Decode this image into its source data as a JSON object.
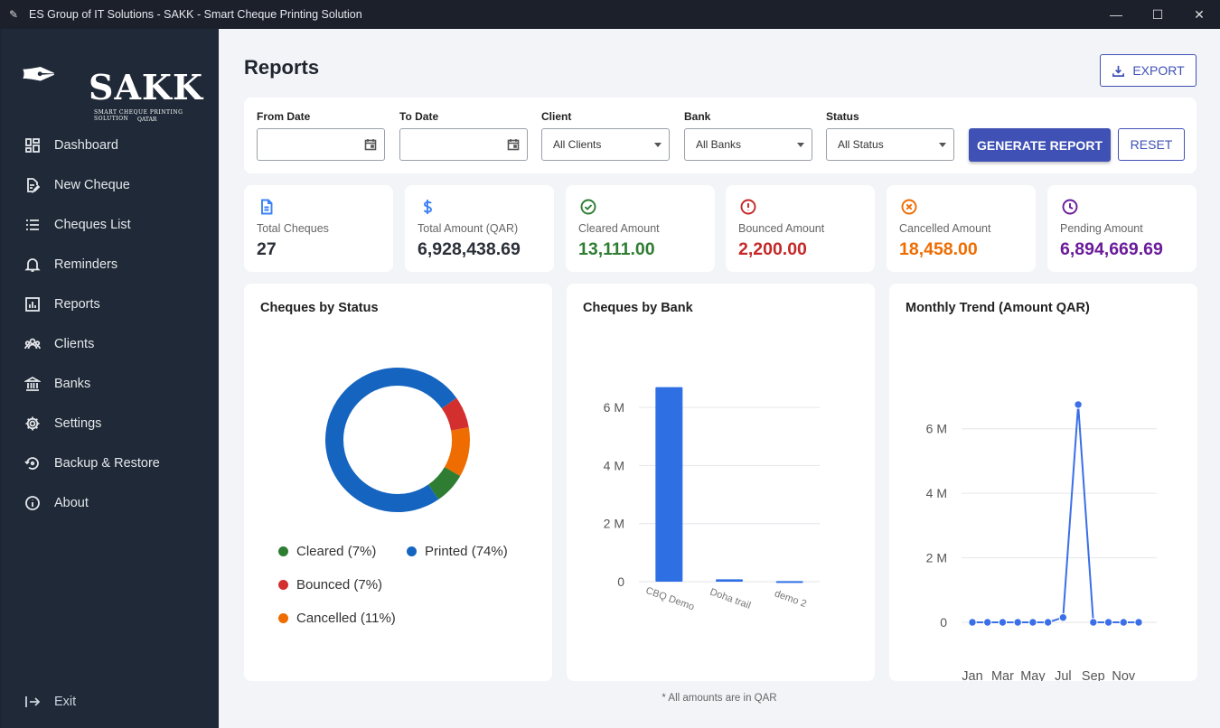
{
  "window": {
    "title": "ES Group of IT Solutions - SAKK - Smart Cheque Printing Solution",
    "minimize_icon": "minimize-icon",
    "maximize_icon": "maximize-icon",
    "close_icon": "close-icon"
  },
  "sidebar": {
    "logo": {
      "brand": "SAKK",
      "tagline": "SMART CHEQUE PRINTING SOLUTION",
      "location": "QATAR"
    },
    "items": [
      {
        "label": "Dashboard",
        "icon": "dashboard-icon"
      },
      {
        "label": "New Cheque",
        "icon": "edit-document-icon"
      },
      {
        "label": "Cheques List",
        "icon": "list-icon"
      },
      {
        "label": "Reminders",
        "icon": "bell-icon"
      },
      {
        "label": "Reports",
        "icon": "chart-icon"
      },
      {
        "label": "Clients",
        "icon": "people-icon"
      },
      {
        "label": "Banks",
        "icon": "bank-icon"
      },
      {
        "label": "Settings",
        "icon": "gear-icon"
      },
      {
        "label": "Backup & Restore",
        "icon": "restore-icon"
      },
      {
        "label": "About",
        "icon": "info-icon"
      }
    ],
    "exit_label": "Exit"
  },
  "main": {
    "title": "Reports",
    "export_label": "EXPORT",
    "filters": {
      "from_date": {
        "label": "From Date",
        "value": ""
      },
      "to_date": {
        "label": "To Date",
        "value": ""
      },
      "client": {
        "label": "Client",
        "value": "All Clients"
      },
      "bank": {
        "label": "Bank",
        "value": "All Banks"
      },
      "status": {
        "label": "Status",
        "value": "All Status"
      },
      "generate_label": "GENERATE REPORT",
      "reset_label": "RESET"
    },
    "stats": [
      {
        "label": "Total Cheques",
        "value": "27",
        "color": "#2a2f38",
        "icon_color": "#3b82f6",
        "icon": "document-icon"
      },
      {
        "label": "Total Amount (QAR)",
        "value": "6,928,438.69",
        "color": "#2a2f38",
        "icon_color": "#3b82f6",
        "icon": "dollar-icon"
      },
      {
        "label": "Cleared Amount",
        "value": "13,111.00",
        "color": "#2e7d32",
        "icon_color": "#2e7d32",
        "icon": "check-circle-icon"
      },
      {
        "label": "Bounced Amount",
        "value": "2,200.00",
        "color": "#c62828",
        "icon_color": "#c62828",
        "icon": "alert-circle-icon"
      },
      {
        "label": "Cancelled Amount",
        "value": "18,458.00",
        "color": "#ef6c00",
        "icon_color": "#ef6c00",
        "icon": "cancel-circle-icon"
      },
      {
        "label": "Pending Amount",
        "value": "6,894,669.69",
        "color": "#6a1b9a",
        "icon_color": "#6a1b9a",
        "icon": "clock-icon"
      }
    ],
    "footnote": "* All amounts are in QAR"
  },
  "chart_data": [
    {
      "type": "pie",
      "title": "Cheques by Status",
      "donut": true,
      "slices": [
        {
          "name": "Cleared (7%)",
          "value": 7,
          "color": "#2e7d32"
        },
        {
          "name": "Printed (74%)",
          "value": 74,
          "color": "#1565c0"
        },
        {
          "name": "Bounced (7%)",
          "value": 7,
          "color": "#d32f2f"
        },
        {
          "name": "Cancelled (11%)",
          "value": 11,
          "color": "#ef6c00"
        }
      ],
      "legend_placement": "bottom"
    },
    {
      "type": "bar",
      "title": "Cheques by Bank",
      "categories": [
        "CBQ Demo",
        "Doha trail",
        "demo 2"
      ],
      "values": [
        6700000,
        80000,
        20000
      ],
      "ylim": [
        0,
        7000000
      ],
      "yticks": [
        0,
        2000000,
        4000000,
        6000000
      ],
      "ytick_labels": [
        "0",
        "2 M",
        "4 M",
        "6 M"
      ],
      "color": "#2f6fe4",
      "grid": true
    },
    {
      "type": "line",
      "title": "Monthly Trend (Amount QAR)",
      "x": [
        "Jan",
        "Feb",
        "Mar",
        "Apr",
        "May",
        "Jun",
        "Jul",
        "Aug",
        "Sep",
        "Oct",
        "Nov",
        "Dec"
      ],
      "xtick_labels": [
        "Jan",
        "Mar",
        "May",
        "Jul",
        "Sep",
        "Nov"
      ],
      "values": [
        0,
        0,
        0,
        0,
        0,
        0,
        150000,
        6750000,
        0,
        0,
        0,
        0
      ],
      "ylim": [
        0,
        7000000
      ],
      "yticks": [
        0,
        2000000,
        4000000,
        6000000
      ],
      "ytick_labels": [
        "0",
        "2 M",
        "4 M",
        "6 M"
      ],
      "color": "#3b6fe8",
      "grid": true
    }
  ]
}
